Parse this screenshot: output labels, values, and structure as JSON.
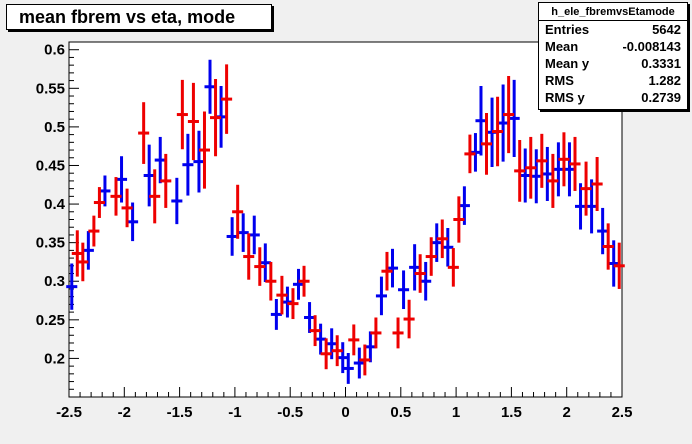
{
  "title": "mean fbrem vs eta, mode",
  "stats": {
    "name": "h_ele_fbremvsEtamode",
    "rows": [
      {
        "label": "Entries",
        "value": "5642"
      },
      {
        "label": "Mean",
        "value": "-0.008143"
      },
      {
        "label": "Mean y",
        "value": "0.3331"
      },
      {
        "label": "RMS",
        "value": "1.282"
      },
      {
        "label": "RMS y",
        "value": "0.2739"
      }
    ]
  },
  "colors": {
    "frame_bg": "#f0f0f0",
    "plot_bg": "#ffffff",
    "series_a": "#0000ee",
    "series_b": "#ee0000"
  },
  "chart_data": {
    "type": "scatter",
    "title": "mean fbrem vs eta, mode",
    "xlabel": "",
    "ylabel": "",
    "xlim": [
      -2.5,
      2.5
    ],
    "ylim": [
      0.15,
      0.61
    ],
    "xticks": [
      "-2.5",
      "-2",
      "-1.5",
      "-1",
      "-0.5",
      "0",
      "0.5",
      "1",
      "1.5",
      "2",
      "2.5"
    ],
    "yticks": [
      "0.2",
      "0.25",
      "0.3",
      "0.35",
      "0.4",
      "0.45",
      "0.5",
      "0.55",
      "0.6"
    ],
    "legend": "none",
    "series": [
      {
        "color": "#0000ee",
        "points": [
          {
            "x": -2.475,
            "y": 0.293,
            "err": 0.03
          },
          {
            "x": -2.325,
            "y": 0.34,
            "err": 0.025
          },
          {
            "x": -2.175,
            "y": 0.417,
            "err": 0.02
          },
          {
            "x": -2.025,
            "y": 0.432,
            "err": 0.03
          },
          {
            "x": -1.925,
            "y": 0.377,
            "err": 0.025
          },
          {
            "x": -1.775,
            "y": 0.437,
            "err": 0.04
          },
          {
            "x": -1.675,
            "y": 0.457,
            "err": 0.03
          },
          {
            "x": -1.525,
            "y": 0.404,
            "err": 0.03
          },
          {
            "x": -1.425,
            "y": 0.451,
            "err": 0.04
          },
          {
            "x": -1.325,
            "y": 0.455,
            "err": 0.04
          },
          {
            "x": -1.225,
            "y": 0.552,
            "err": 0.035
          },
          {
            "x": -1.125,
            "y": 0.513,
            "err": 0.04
          },
          {
            "x": -1.025,
            "y": 0.358,
            "err": 0.025
          },
          {
            "x": -0.925,
            "y": 0.363,
            "err": 0.025
          },
          {
            "x": -0.825,
            "y": 0.36,
            "err": 0.025
          },
          {
            "x": -0.725,
            "y": 0.324,
            "err": 0.025
          },
          {
            "x": -0.625,
            "y": 0.257,
            "err": 0.02
          },
          {
            "x": -0.525,
            "y": 0.273,
            "err": 0.02
          },
          {
            "x": -0.425,
            "y": 0.296,
            "err": 0.02
          },
          {
            "x": -0.325,
            "y": 0.253,
            "err": 0.02
          },
          {
            "x": -0.225,
            "y": 0.225,
            "err": 0.02
          },
          {
            "x": -0.125,
            "y": 0.219,
            "err": 0.02
          },
          {
            "x": -0.025,
            "y": 0.201,
            "err": 0.02
          },
          {
            "x": 0.025,
            "y": 0.187,
            "err": 0.02
          },
          {
            "x": 0.125,
            "y": 0.194,
            "err": 0.02
          },
          {
            "x": 0.225,
            "y": 0.215,
            "err": 0.02
          },
          {
            "x": 0.325,
            "y": 0.281,
            "err": 0.025
          },
          {
            "x": 0.425,
            "y": 0.317,
            "err": 0.025
          },
          {
            "x": 0.525,
            "y": 0.289,
            "err": 0.025
          },
          {
            "x": 0.625,
            "y": 0.318,
            "err": 0.03
          },
          {
            "x": 0.725,
            "y": 0.3,
            "err": 0.025
          },
          {
            "x": 0.825,
            "y": 0.35,
            "err": 0.025
          },
          {
            "x": 0.925,
            "y": 0.344,
            "err": 0.025
          },
          {
            "x": 1.075,
            "y": 0.398,
            "err": 0.025
          },
          {
            "x": 1.175,
            "y": 0.467,
            "err": 0.025
          },
          {
            "x": 1.225,
            "y": 0.508,
            "err": 0.045
          },
          {
            "x": 1.325,
            "y": 0.493,
            "err": 0.045
          },
          {
            "x": 1.425,
            "y": 0.505,
            "err": 0.05
          },
          {
            "x": 1.525,
            "y": 0.511,
            "err": 0.05
          },
          {
            "x": 1.625,
            "y": 0.437,
            "err": 0.035
          },
          {
            "x": 1.725,
            "y": 0.436,
            "err": 0.035
          },
          {
            "x": 1.825,
            "y": 0.439,
            "err": 0.035
          },
          {
            "x": 1.925,
            "y": 0.445,
            "err": 0.035
          },
          {
            "x": 2.025,
            "y": 0.445,
            "err": 0.035
          },
          {
            "x": 2.125,
            "y": 0.397,
            "err": 0.03
          },
          {
            "x": 2.225,
            "y": 0.397,
            "err": 0.035
          },
          {
            "x": 2.325,
            "y": 0.365,
            "err": 0.03
          },
          {
            "x": 2.425,
            "y": 0.323,
            "err": 0.03
          }
        ]
      },
      {
        "color": "#ee0000",
        "points": [
          {
            "x": -2.425,
            "y": 0.336,
            "err": 0.03
          },
          {
            "x": -2.375,
            "y": 0.325,
            "err": 0.025
          },
          {
            "x": -2.275,
            "y": 0.365,
            "err": 0.02
          },
          {
            "x": -2.225,
            "y": 0.402,
            "err": 0.02
          },
          {
            "x": -2.075,
            "y": 0.41,
            "err": 0.025
          },
          {
            "x": -1.975,
            "y": 0.395,
            "err": 0.025
          },
          {
            "x": -1.825,
            "y": 0.492,
            "err": 0.04
          },
          {
            "x": -1.725,
            "y": 0.41,
            "err": 0.035
          },
          {
            "x": -1.625,
            "y": 0.43,
            "err": 0.035
          },
          {
            "x": -1.475,
            "y": 0.516,
            "err": 0.045
          },
          {
            "x": -1.375,
            "y": 0.507,
            "err": 0.05
          },
          {
            "x": -1.275,
            "y": 0.47,
            "err": 0.05
          },
          {
            "x": -1.175,
            "y": 0.512,
            "err": 0.05
          },
          {
            "x": -1.075,
            "y": 0.536,
            "err": 0.045
          },
          {
            "x": -0.975,
            "y": 0.39,
            "err": 0.035
          },
          {
            "x": -0.875,
            "y": 0.332,
            "err": 0.03
          },
          {
            "x": -0.775,
            "y": 0.319,
            "err": 0.025
          },
          {
            "x": -0.675,
            "y": 0.3,
            "err": 0.025
          },
          {
            "x": -0.575,
            "y": 0.282,
            "err": 0.025
          },
          {
            "x": -0.475,
            "y": 0.271,
            "err": 0.02
          },
          {
            "x": -0.375,
            "y": 0.3,
            "err": 0.02
          },
          {
            "x": -0.275,
            "y": 0.236,
            "err": 0.02
          },
          {
            "x": -0.175,
            "y": 0.206,
            "err": 0.02
          },
          {
            "x": -0.075,
            "y": 0.21,
            "err": 0.02
          },
          {
            "x": 0.075,
            "y": 0.224,
            "err": 0.02
          },
          {
            "x": 0.175,
            "y": 0.198,
            "err": 0.02
          },
          {
            "x": 0.275,
            "y": 0.233,
            "err": 0.02
          },
          {
            "x": 0.375,
            "y": 0.313,
            "err": 0.025
          },
          {
            "x": 0.475,
            "y": 0.233,
            "err": 0.02
          },
          {
            "x": 0.575,
            "y": 0.251,
            "err": 0.025
          },
          {
            "x": 0.675,
            "y": 0.31,
            "err": 0.025
          },
          {
            "x": 0.775,
            "y": 0.332,
            "err": 0.025
          },
          {
            "x": 0.875,
            "y": 0.355,
            "err": 0.025
          },
          {
            "x": 0.975,
            "y": 0.318,
            "err": 0.025
          },
          {
            "x": 1.025,
            "y": 0.38,
            "err": 0.03
          },
          {
            "x": 1.125,
            "y": 0.465,
            "err": 0.025
          },
          {
            "x": 1.275,
            "y": 0.478,
            "err": 0.04
          },
          {
            "x": 1.375,
            "y": 0.494,
            "err": 0.045
          },
          {
            "x": 1.475,
            "y": 0.516,
            "err": 0.05
          },
          {
            "x": 1.575,
            "y": 0.443,
            "err": 0.04
          },
          {
            "x": 1.675,
            "y": 0.447,
            "err": 0.04
          },
          {
            "x": 1.775,
            "y": 0.456,
            "err": 0.035
          },
          {
            "x": 1.875,
            "y": 0.43,
            "err": 0.035
          },
          {
            "x": 1.975,
            "y": 0.458,
            "err": 0.035
          },
          {
            "x": 2.075,
            "y": 0.452,
            "err": 0.035
          },
          {
            "x": 2.175,
            "y": 0.42,
            "err": 0.035
          },
          {
            "x": 2.275,
            "y": 0.426,
            "err": 0.035
          },
          {
            "x": 2.375,
            "y": 0.345,
            "err": 0.03
          },
          {
            "x": 2.475,
            "y": 0.32,
            "err": 0.03
          }
        ]
      }
    ]
  }
}
